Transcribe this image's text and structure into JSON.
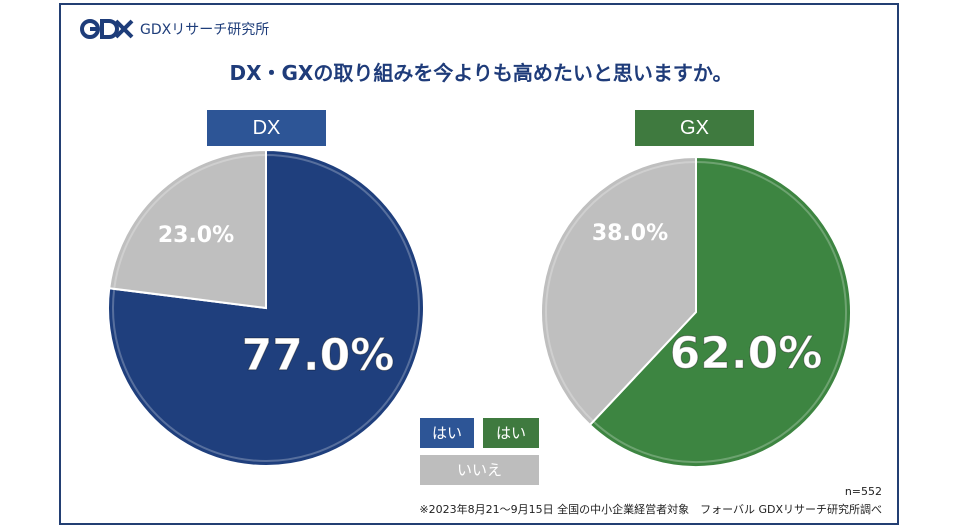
{
  "logo": {
    "mark": "GDX",
    "text": "GDXリサーチ研究所"
  },
  "title": "DX・GXの取り組みを今よりも高めたいと思いますか。",
  "colors": {
    "dx_yes": "#1f3f7d",
    "gx_yes": "#3d8541",
    "no": "#bfbfbf",
    "dx_tag": "#2d5596",
    "gx_tag": "#3f7a3f"
  },
  "chart_data": [
    {
      "type": "pie",
      "title": "DX",
      "slices": [
        {
          "label": "はい",
          "value": 77.0,
          "display": "77.0%",
          "color": "#1f3f7d"
        },
        {
          "label": "いいえ",
          "value": 23.0,
          "display": "23.0%",
          "color": "#bfbfbf"
        }
      ]
    },
    {
      "type": "pie",
      "title": "GX",
      "slices": [
        {
          "label": "はい",
          "value": 62.0,
          "display": "62.0%",
          "color": "#3d8541"
        },
        {
          "label": "いいえ",
          "value": 38.0,
          "display": "38.0%",
          "color": "#bfbfbf"
        }
      ]
    }
  ],
  "legend": {
    "dx_yes": "はい",
    "gx_yes": "はい",
    "no": "いいえ"
  },
  "notes": {
    "n": "n=552",
    "source": "※2023年8月21～9月15日 全国の中小企業経営者対象　フォーバル GDXリサーチ研究所調べ"
  }
}
